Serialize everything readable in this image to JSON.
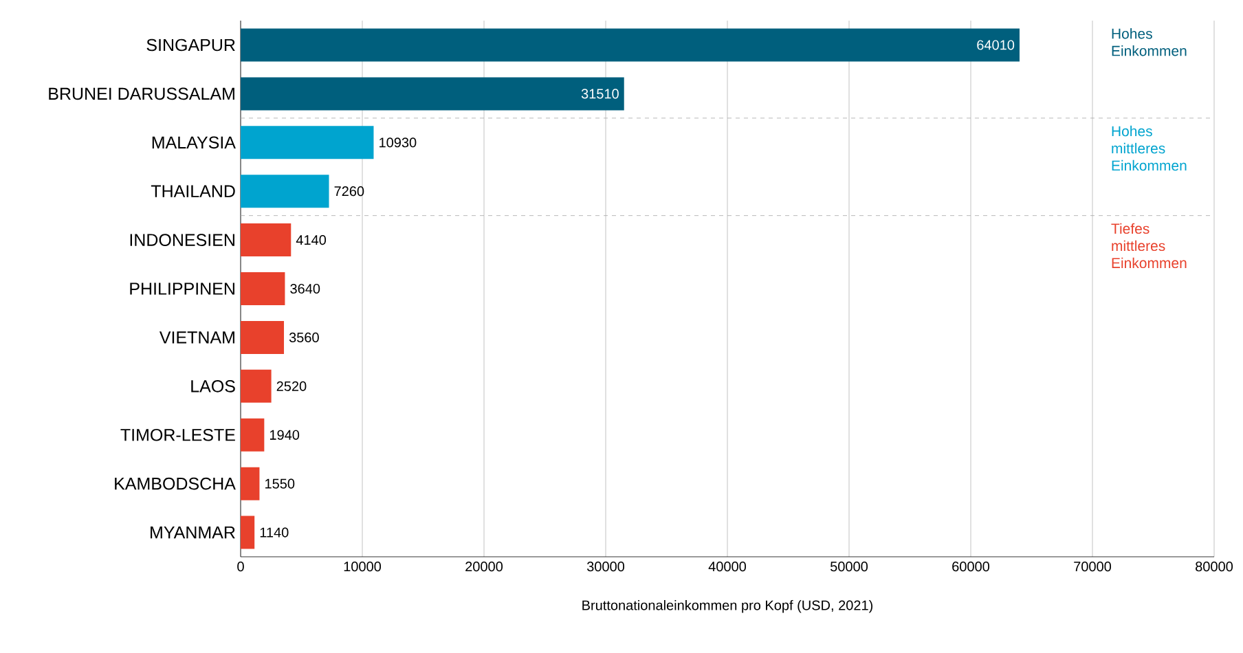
{
  "chart_data": {
    "type": "bar",
    "orientation": "horizontal",
    "categories": [
      "SINGAPUR",
      "BRUNEI DARUSSALAM",
      "MALAYSIA",
      "THAILAND",
      "INDONESIEN",
      "PHILIPPINEN",
      "VIETNAM",
      "LAOS",
      "TIMOR-LESTE",
      "KAMBODSCHA",
      "MYANMAR"
    ],
    "values": [
      64010,
      31510,
      10930,
      7260,
      4140,
      3640,
      3560,
      2520,
      1940,
      1550,
      1140
    ],
    "colors": [
      "#005f7d",
      "#005f7d",
      "#00a4cf",
      "#00a4cf",
      "#e8412c",
      "#e8412c",
      "#e8412c",
      "#e8412c",
      "#e8412c",
      "#e8412c",
      "#e8412c"
    ],
    "data_labels": true,
    "xlim": [
      0,
      80000
    ],
    "xticks": [
      0,
      10000,
      20000,
      30000,
      40000,
      50000,
      60000,
      70000,
      80000
    ],
    "grid": "x",
    "xlabel": "Bruttonationaleinkommen pro Kopf (USD, 2021)",
    "annotations": [
      "Hohes Einkommen",
      "Hohes mittleres Einkommen",
      "Tiefes mittleres Einkommen"
    ]
  }
}
